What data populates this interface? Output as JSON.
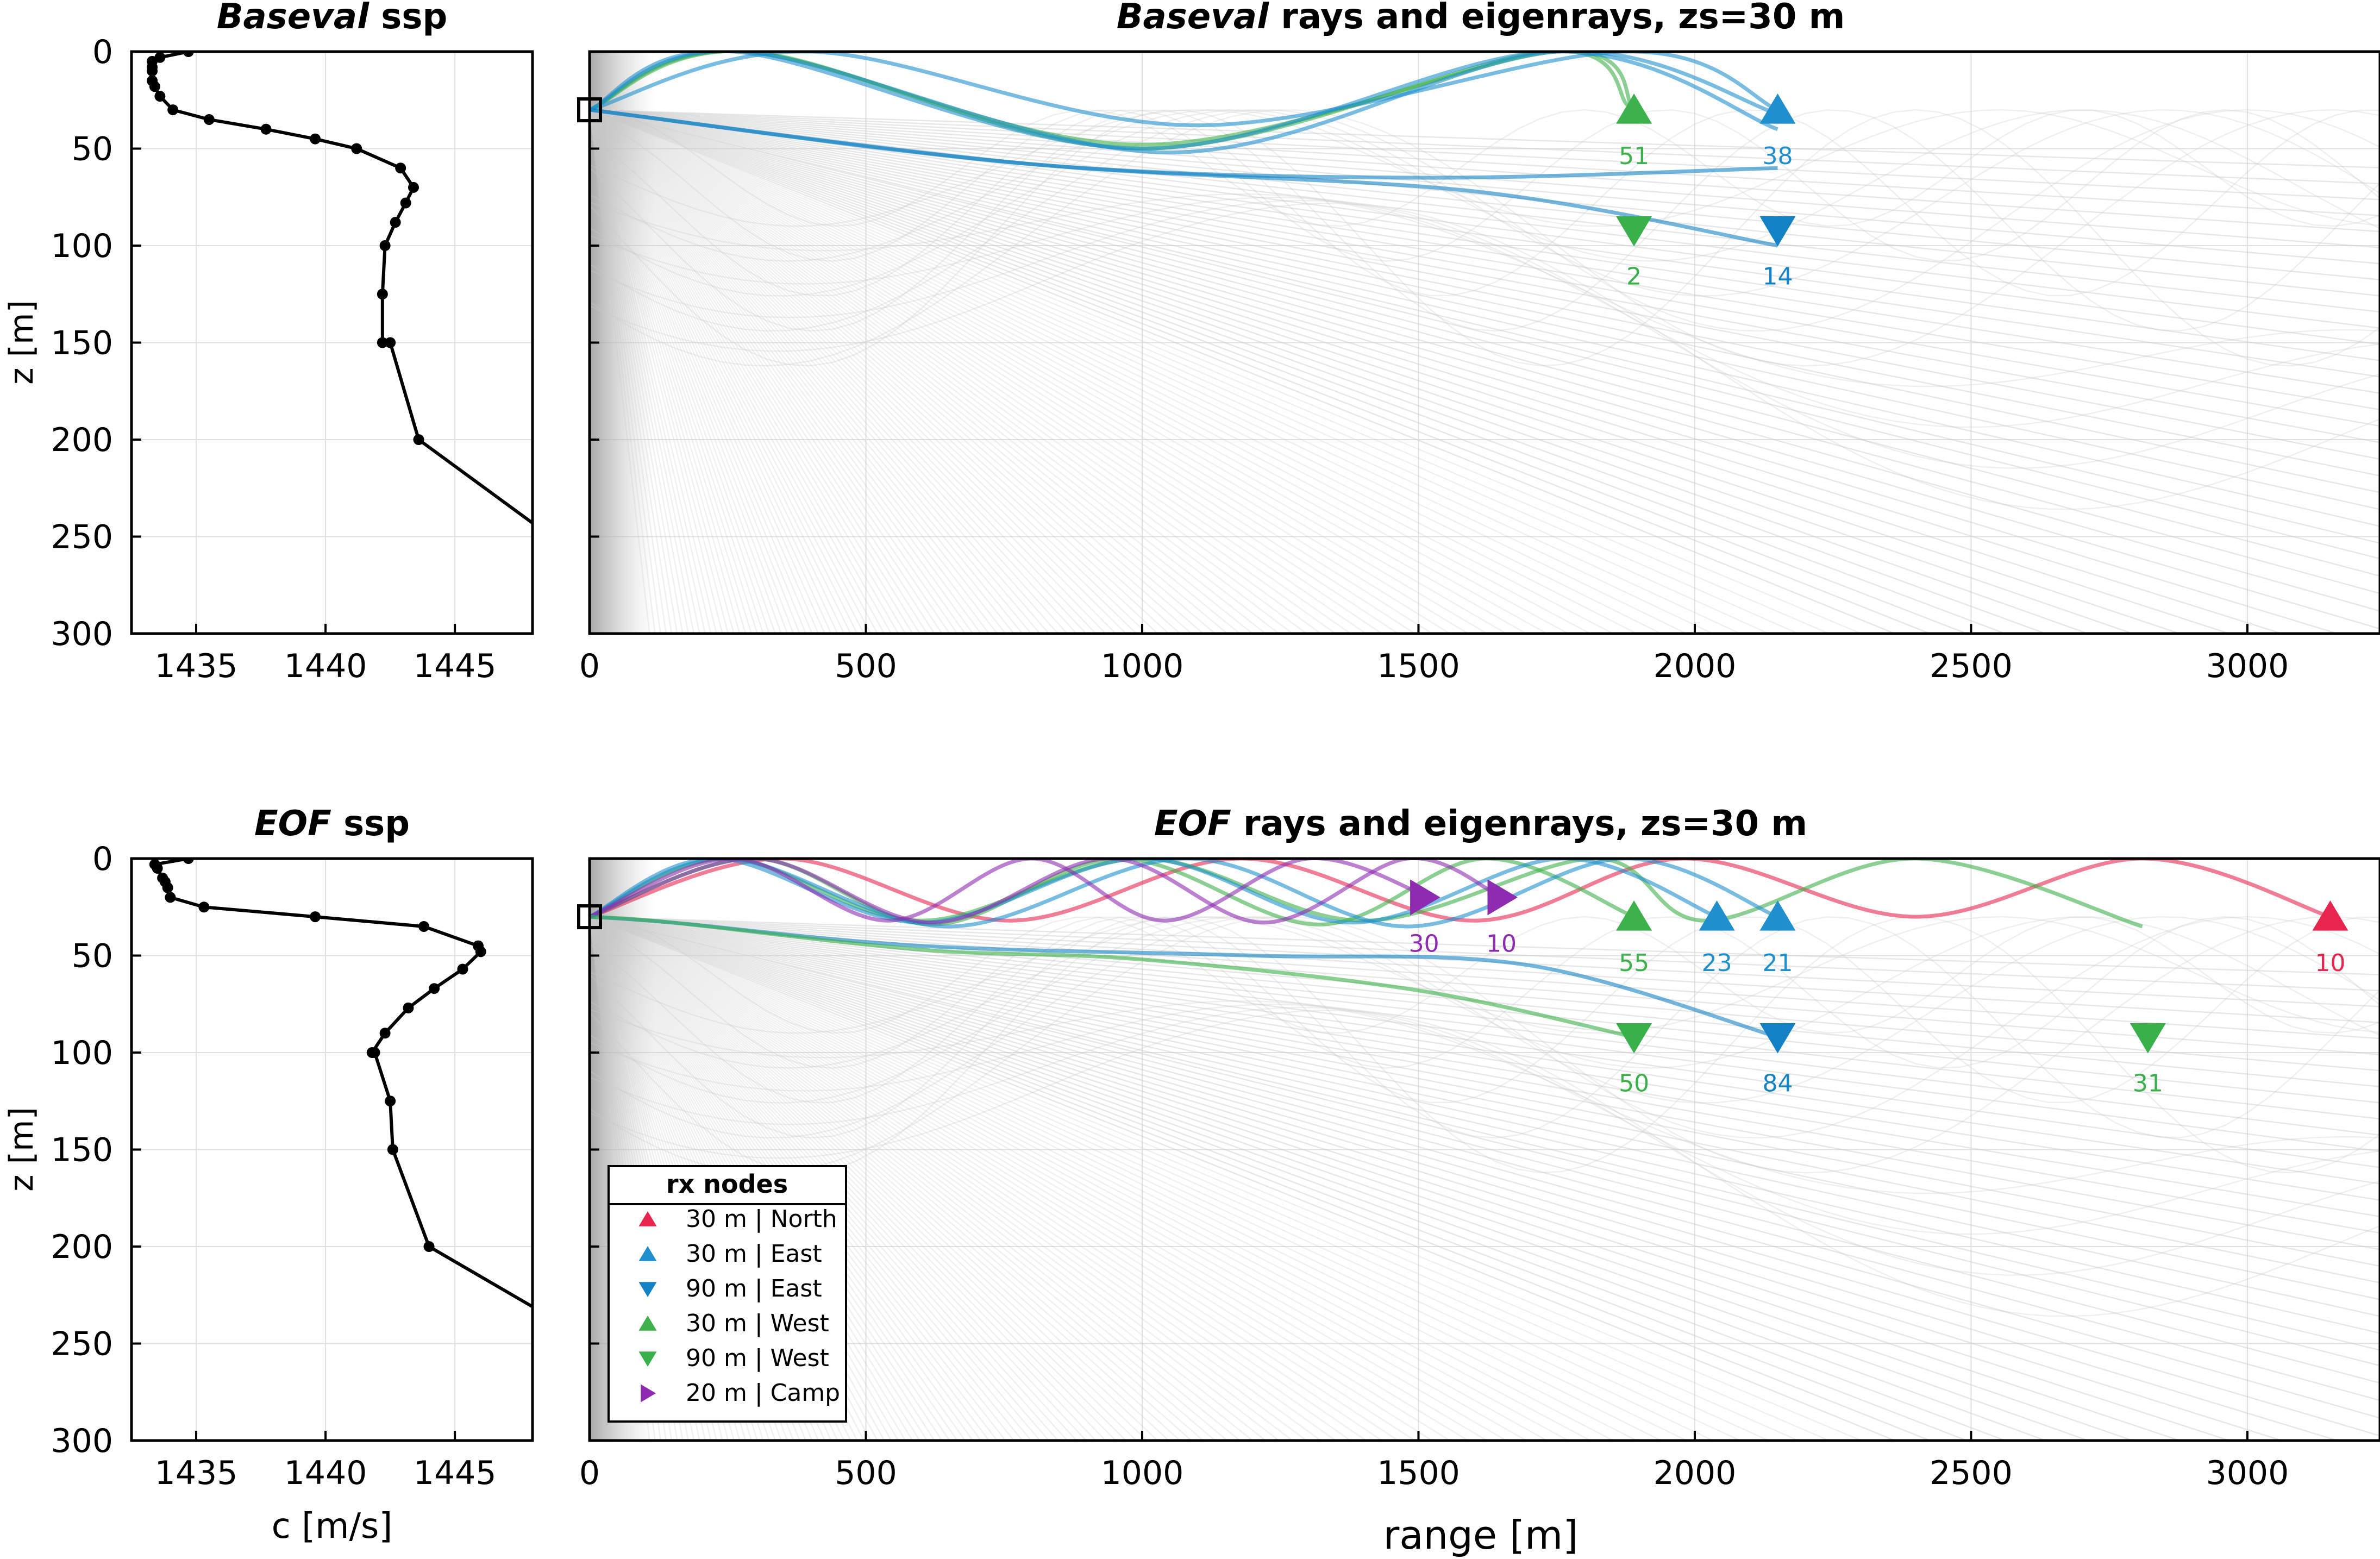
{
  "chart_data": [
    {
      "id": "ssp_base",
      "type": "line",
      "title_italic": "Baseval",
      "title_rest": " ssp",
      "xlabel": "",
      "ylabel": "z [m]",
      "xlim": [
        1432.5,
        1448
      ],
      "ylim": [
        300,
        0
      ],
      "xticks": [
        1435,
        1440,
        1445
      ],
      "yticks": [
        0,
        50,
        100,
        150,
        200,
        250,
        300
      ],
      "grid": true,
      "series": [
        {
          "c": [
            1434.7,
            1433.6,
            1433.3,
            1433.3,
            1433.3,
            1433.3,
            1433.4,
            1433.6,
            1434.1,
            1435.5,
            1437.7,
            1439.6,
            1441.2,
            1442.9,
            1443.4,
            1443.1,
            1442.7,
            1442.3,
            1442.2,
            1442.2,
            1442.5,
            1443.6,
            1448
          ],
          "z": [
            0,
            3,
            5,
            8,
            10,
            15,
            18,
            23,
            30,
            35,
            40,
            45,
            50,
            60,
            70,
            78,
            88,
            100,
            125,
            150,
            150,
            200,
            243
          ]
        }
      ]
    },
    {
      "id": "rays_base",
      "type": "line",
      "title_italic": "Baseval",
      "title_rest": " rays and eigenrays, zs=30 m",
      "xlabel": "",
      "ylabel": "",
      "xlim": [
        0,
        3240
      ],
      "ylim": [
        300,
        0
      ],
      "xticks": [
        0,
        500,
        1000,
        1500,
        2000,
        2500,
        3000
      ],
      "grid": true,
      "source": {
        "x": 0,
        "z": 30
      },
      "eigenrays": [
        {
          "node": "West30",
          "x": [
            0,
            280,
            1000,
            1750,
            1890
          ],
          "z": [
            30,
            0,
            48,
            0,
            30
          ]
        },
        {
          "node": "West30",
          "x": [
            0,
            290,
            1000,
            1730,
            1880
          ],
          "z": [
            30,
            0,
            50,
            0,
            28
          ]
        },
        {
          "node": "East30",
          "x": [
            0,
            260,
            1000,
            1740,
            2150
          ],
          "z": [
            30,
            0,
            50,
            0,
            40
          ]
        },
        {
          "node": "East30",
          "x": [
            0,
            400,
            1100,
            1870,
            2150
          ],
          "z": [
            30,
            0,
            38,
            0,
            30
          ]
        },
        {
          "node": "East30",
          "x": [
            0,
            280,
            1050,
            1750,
            2150
          ],
          "z": [
            30,
            0,
            52,
            0,
            32
          ]
        },
        {
          "node": "East90",
          "x": [
            0,
            800,
            1500,
            2150
          ],
          "z": [
            30,
            58,
            65,
            60
          ]
        },
        {
          "node": "East90",
          "x": [
            0,
            800,
            1600,
            2150
          ],
          "z": [
            30,
            58,
            72,
            100
          ]
        }
      ],
      "receivers": [
        {
          "node": "West30",
          "x": 1890,
          "z": 30,
          "count": "51"
        },
        {
          "node": "East30",
          "x": 2150,
          "z": 30,
          "count": "38"
        },
        {
          "node": "West90",
          "x": 1890,
          "z": 92,
          "count": "2"
        },
        {
          "node": "East90",
          "x": 2150,
          "z": 92,
          "count": "14"
        }
      ]
    },
    {
      "id": "ssp_eof",
      "type": "line",
      "title_italic": "EOF",
      "title_rest": " ssp",
      "xlabel": "c [m/s]",
      "ylabel": "z [m]",
      "xlim": [
        1432.5,
        1448
      ],
      "ylim": [
        300,
        0
      ],
      "xticks": [
        1435,
        1440,
        1445
      ],
      "yticks": [
        0,
        50,
        100,
        150,
        200,
        250,
        300
      ],
      "grid": true,
      "series": [
        {
          "c": [
            1434.7,
            1433.4,
            1433.5,
            1433.7,
            1433.8,
            1433.9,
            1434.0,
            1435.3,
            1439.6,
            1443.8,
            1445.9,
            1446.0,
            1445.3,
            1444.2,
            1443.2,
            1442.3,
            1441.8,
            1441.9,
            1442.5,
            1442.6,
            1444.0,
            1448
          ],
          "z": [
            0,
            3,
            5,
            10,
            12,
            15,
            20,
            25,
            30,
            35,
            45,
            48,
            57,
            67,
            77,
            90,
            100,
            100,
            125,
            150,
            200,
            231
          ]
        }
      ]
    },
    {
      "id": "rays_eof",
      "type": "line",
      "title_italic": "EOF",
      "title_rest": " rays and eigenrays, zs=30 m",
      "xlabel": "range [m]",
      "ylabel": "",
      "xlim": [
        0,
        3240
      ],
      "ylim": [
        300,
        0
      ],
      "xticks": [
        0,
        500,
        1000,
        1500,
        2000,
        2500,
        3000
      ],
      "grid": true,
      "source": {
        "x": 0,
        "z": 30
      },
      "eigenrays": [
        {
          "node": "North30",
          "x": [
            0,
            350,
            760,
            1180,
            1600,
            1980,
            2400,
            2810,
            3150
          ],
          "z": [
            30,
            0,
            32,
            0,
            32,
            0,
            30,
            0,
            30
          ]
        },
        {
          "node": "West30",
          "x": [
            0,
            250,
            600,
            1000,
            1400,
            1820,
            2020,
            2400,
            2810
          ],
          "z": [
            30,
            0,
            32,
            0,
            32,
            0,
            32,
            0,
            35
          ]
        },
        {
          "node": "West30",
          "x": [
            0,
            300,
            620,
            960,
            1320,
            1620,
            1890
          ],
          "z": [
            30,
            0,
            34,
            0,
            34,
            0,
            30
          ]
        },
        {
          "node": "East30",
          "x": [
            0,
            250,
            650,
            1080,
            1480,
            1870,
            2150
          ],
          "z": [
            30,
            0,
            35,
            0,
            35,
            0,
            30
          ]
        },
        {
          "node": "East30",
          "x": [
            0,
            230,
            600,
            1000,
            1380,
            1760,
            2040
          ],
          "z": [
            30,
            0,
            33,
            0,
            33,
            0,
            30
          ]
        },
        {
          "node": "Camp20",
          "x": [
            0,
            260,
            540,
            800,
            1040,
            1300,
            1520
          ],
          "z": [
            30,
            0,
            32,
            0,
            32,
            0,
            20
          ]
        },
        {
          "node": "Camp20",
          "x": [
            0,
            300,
            620,
            940,
            1220,
            1480,
            1650
          ],
          "z": [
            30,
            0,
            33,
            0,
            33,
            0,
            20
          ]
        },
        {
          "node": "East90",
          "x": [
            0,
            150,
            600,
            1200,
            1700,
            2150
          ],
          "z": [
            30,
            33,
            45,
            50,
            55,
            92
          ]
        },
        {
          "node": "West90",
          "x": [
            0,
            150,
            600,
            1000,
            1500,
            1890
          ],
          "z": [
            30,
            33,
            47,
            52,
            68,
            92
          ]
        }
      ],
      "receivers": [
        {
          "node": "Camp20",
          "x": 1510,
          "z": 20,
          "count": "30"
        },
        {
          "node": "Camp20",
          "x": 1650,
          "z": 20,
          "count": "10"
        },
        {
          "node": "West30",
          "x": 1890,
          "z": 30,
          "count": "55"
        },
        {
          "node": "East30",
          "x": 2040,
          "z": 30,
          "count": "23"
        },
        {
          "node": "East30",
          "x": 2150,
          "z": 30,
          "count": "21"
        },
        {
          "node": "North30",
          "x": 3150,
          "z": 30,
          "count": "10"
        },
        {
          "node": "West90",
          "x": 1890,
          "z": 92,
          "count": "50"
        },
        {
          "node": "East90",
          "x": 2150,
          "z": 92,
          "count": "84"
        },
        {
          "node": "West90",
          "x": 2820,
          "z": 92,
          "count": "31"
        }
      ],
      "legend": {
        "title": "rx nodes",
        "position": "bottom-left",
        "entries": [
          {
            "node": "North30",
            "label": "30 m | North",
            "marker": "up"
          },
          {
            "node": "East30",
            "label": "30 m | East",
            "marker": "up"
          },
          {
            "node": "East90",
            "label": "90 m | East",
            "marker": "down"
          },
          {
            "node": "West30",
            "label": "30 m | West",
            "marker": "up"
          },
          {
            "node": "West90",
            "label": "90 m | West",
            "marker": "down"
          },
          {
            "node": "Camp20",
            "label": "20 m | Camp",
            "marker": "right"
          }
        ]
      }
    }
  ],
  "colors": {
    "North30": "#e8254f",
    "East30": "#1f8fce",
    "East90": "#1282c5",
    "West30": "#3db14a",
    "West90": "#39b04a",
    "Camp20": "#8e2bb0",
    "background_rays": "#c9c9c9",
    "ssp_line": "#000000",
    "grid": "#e0e0e0"
  },
  "marker_shapes": {
    "up": "triangle-up",
    "down": "triangle-down",
    "right": "triangle-right"
  }
}
